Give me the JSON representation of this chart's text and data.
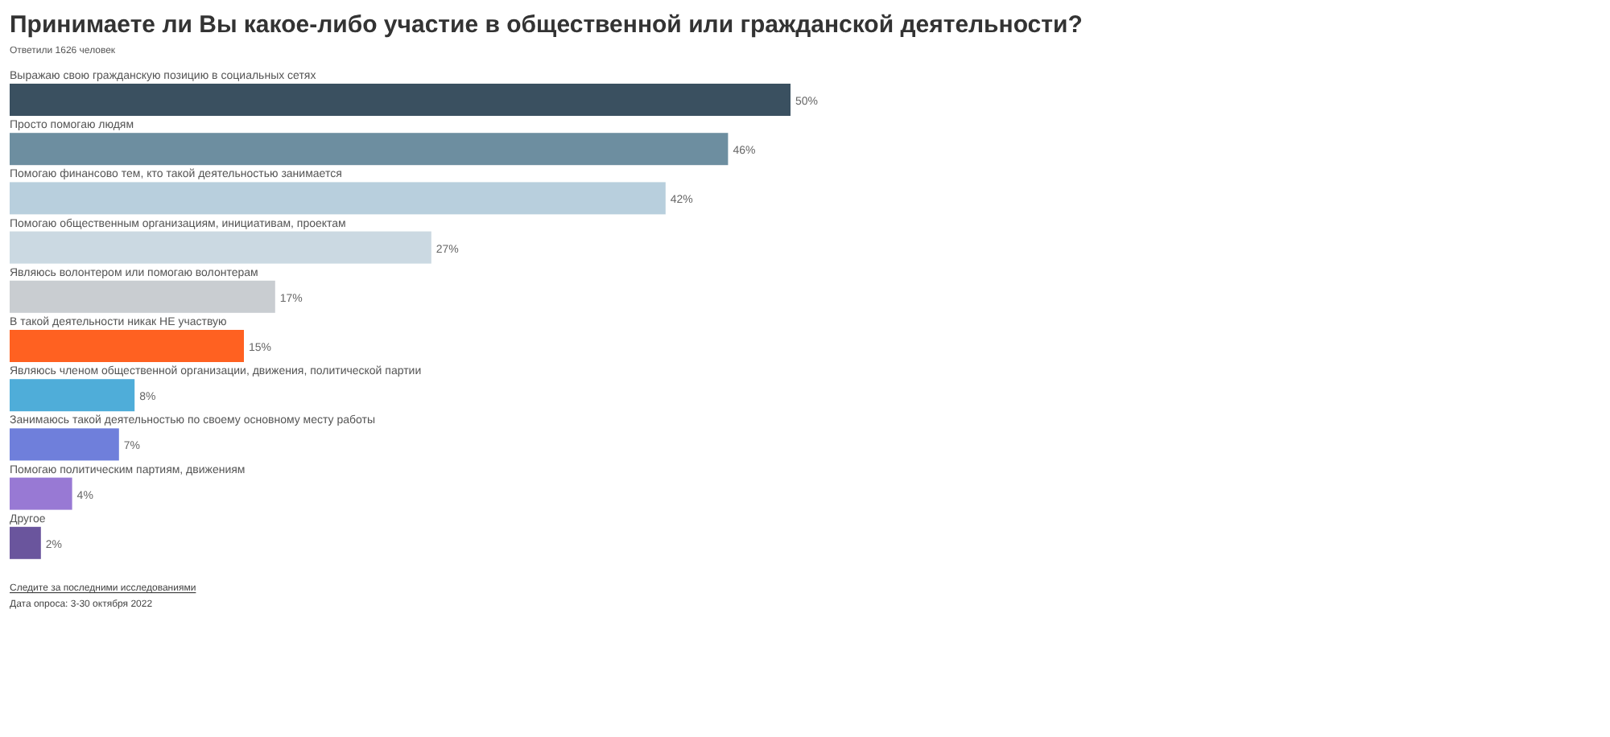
{
  "chart_data": {
    "type": "bar",
    "orientation": "horizontal",
    "relative": false,
    "title": "Принимаете ли Вы какое-либо участие в общественной или гражданской деятельности?",
    "subtitle": "Ответили 1626 человек",
    "categories": [
      "Выражаю свою гражданскую позицию в социальных сетях",
      "Просто помогаю людям",
      "Помогаю финансово тем, кто такой деятельностью занимается",
      "Помогаю общественным организациям, инициативам, проектам",
      "Являюсь волонтером или помогаю волонтерам",
      "В такой деятельности никак НЕ участвую",
      "Являюсь членом общественной организации, движения, политической партии",
      "Занимаюсь такой деятельностью по своему основному месту работы",
      "Помогаю политическим партиям, движениям",
      "Другое"
    ],
    "values": [
      50,
      46,
      42,
      27,
      17,
      15,
      8,
      7,
      4,
      2
    ],
    "value_labels": [
      "50%",
      "46%",
      "42%",
      "27%",
      "17%",
      "15%",
      "8%",
      "7%",
      "4%",
      "2%"
    ],
    "colors": [
      "#3a5060",
      "#6d8ea0",
      "#b8cfdd",
      "#cbd9e2",
      "#c9cdd1",
      "#ff6121",
      "#4fadd9",
      "#6f7fdb",
      "#9879d4",
      "#6a559d"
    ],
    "annotations": [
      "Следите за последними исследованиями",
      "Дата опроса: 3-30 октября 2022"
    ]
  }
}
